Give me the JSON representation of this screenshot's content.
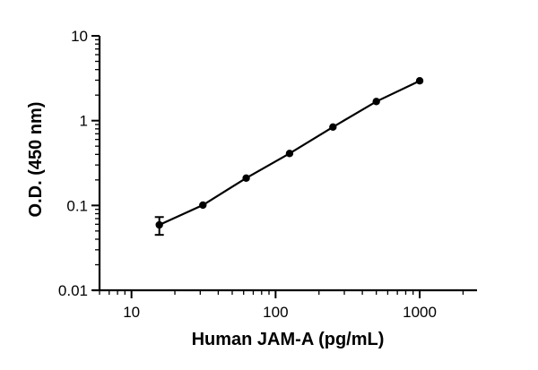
{
  "chart_data": {
    "type": "scatter",
    "title": "",
    "xlabel": "Human JAM-A (pg/mL)",
    "ylabel": "O.D. (450 nm)",
    "xscale": "log",
    "yscale": "log",
    "xlim": [
      6,
      2500
    ],
    "ylim": [
      0.01,
      10
    ],
    "xticks": [
      10,
      100,
      1000
    ],
    "xticklabels": [
      "10",
      "100",
      "1000"
    ],
    "yticks": [
      0.01,
      0.1,
      1,
      10
    ],
    "yticklabels": [
      "0.01",
      "0.1",
      "1",
      "10"
    ],
    "grid": false,
    "legend": "none",
    "series": [
      {
        "x": [
          15.6,
          31.3,
          62.5,
          125,
          250,
          500,
          1000
        ],
        "y": [
          0.059,
          0.101,
          0.21,
          0.41,
          0.84,
          1.68,
          2.95
        ],
        "yerr": [
          0.014,
          0.004,
          0.008,
          0.012,
          0.02,
          0.03,
          0.04
        ],
        "line": "fitted curve",
        "color": "#000000"
      }
    ]
  }
}
